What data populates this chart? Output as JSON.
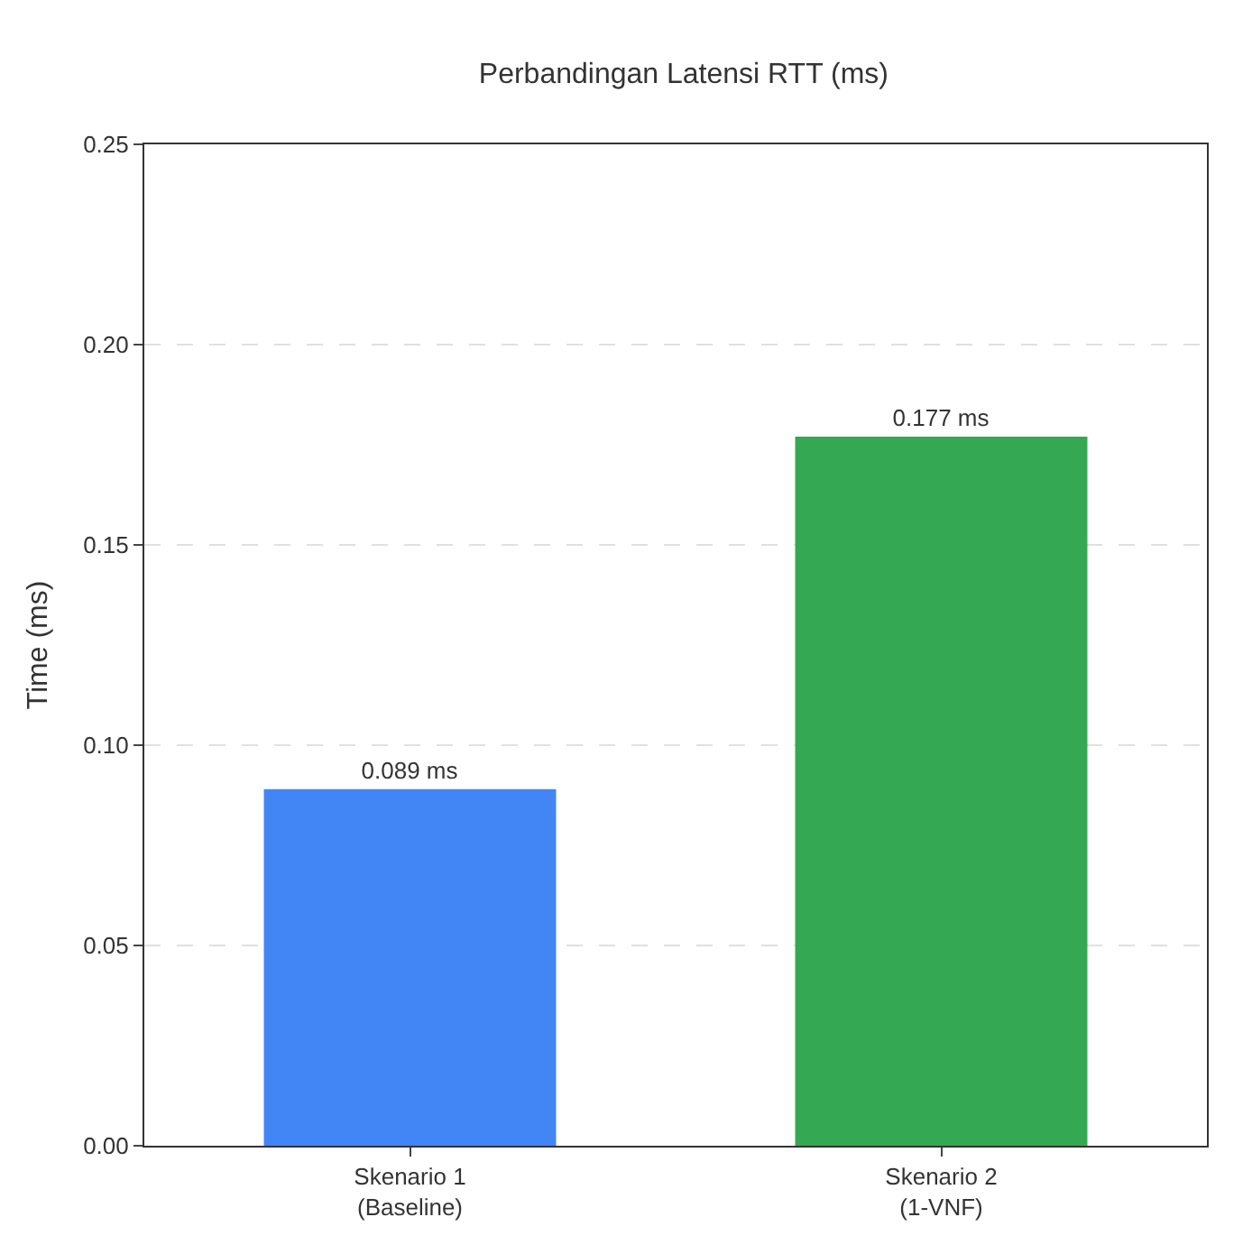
{
  "chart_data": {
    "type": "bar",
    "title": "Perbandingan Latensi RTT (ms)",
    "ylabel": "Time (ms)",
    "categories": [
      "Skenario 1\n(Baseline)",
      "Skenario 2\n(1-VNF)"
    ],
    "values": [
      0.089,
      0.177
    ],
    "colors": [
      "#4285f4",
      "#34a853"
    ],
    "value_labels": [
      "0.089 ms",
      "0.177 ms"
    ],
    "ylim": [
      0,
      0.25
    ],
    "yticks": [
      {
        "value": 0,
        "label": "0.00"
      },
      {
        "value": 0.05,
        "label": "0.05"
      },
      {
        "value": 0.1,
        "label": "0.10"
      },
      {
        "value": 0.15,
        "label": "0.15"
      },
      {
        "value": 0.2,
        "label": "0.20"
      },
      {
        "value": 0.25,
        "label": "0.25"
      }
    ],
    "grid": "y",
    "legend": false
  }
}
